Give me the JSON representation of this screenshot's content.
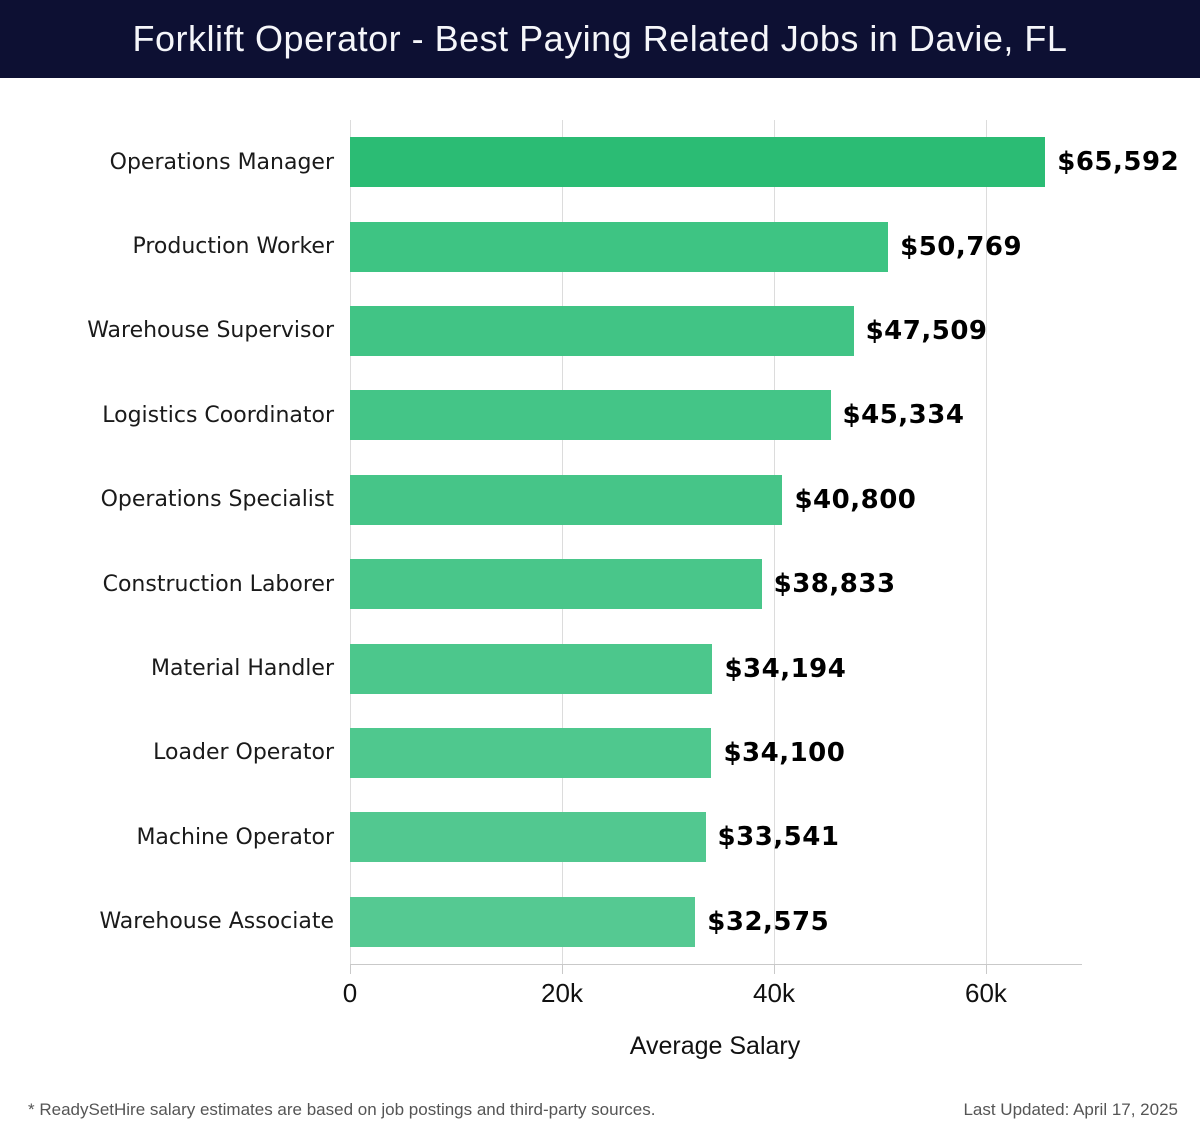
{
  "header": {
    "title": "Forklift Operator - Best Paying Related Jobs in Davie, FL",
    "bg_color": "#0d1033",
    "text_color": "#f5f6fa"
  },
  "chart_data": {
    "type": "bar",
    "orientation": "horizontal",
    "title": "Forklift Operator - Best Paying Related Jobs in Davie, FL",
    "xlabel": "Average Salary",
    "ylabel": "",
    "categories": [
      "Operations Manager",
      "Production Worker",
      "Warehouse Supervisor",
      "Logistics Coordinator",
      "Operations Specialist",
      "Construction Laborer",
      "Material Handler",
      "Loader Operator",
      "Machine Operator",
      "Warehouse Associate"
    ],
    "values": [
      65592,
      50769,
      47509,
      45334,
      40800,
      38833,
      34194,
      34100,
      33541,
      32575
    ],
    "value_labels": [
      "$65,592",
      "$50,769",
      "$47,509",
      "$45,334",
      "$40,800",
      "$38,833",
      "$34,194",
      "$34,100",
      "$33,541",
      "$32,575"
    ],
    "bar_colors": [
      "#2bbc74",
      "#3ec483",
      "#41c485",
      "#44c587",
      "#46c588",
      "#49c68a",
      "#4cc78c",
      "#4fc88e",
      "#52c890",
      "#55c992"
    ],
    "xlim": [
      0,
      68870
    ],
    "xticks": [
      {
        "value": 0,
        "label": "0"
      },
      {
        "value": 20000,
        "label": "20k"
      },
      {
        "value": 40000,
        "label": "40k"
      },
      {
        "value": 60000,
        "label": "60k"
      }
    ],
    "grid": "vertical-gridlines-on",
    "gridline_color": "#dcdcdc",
    "legend": "none"
  },
  "footer": {
    "note": "* ReadySetHire salary estimates are based on job postings and third-party sources.",
    "last_updated": "Last Updated: April 17, 2025"
  }
}
